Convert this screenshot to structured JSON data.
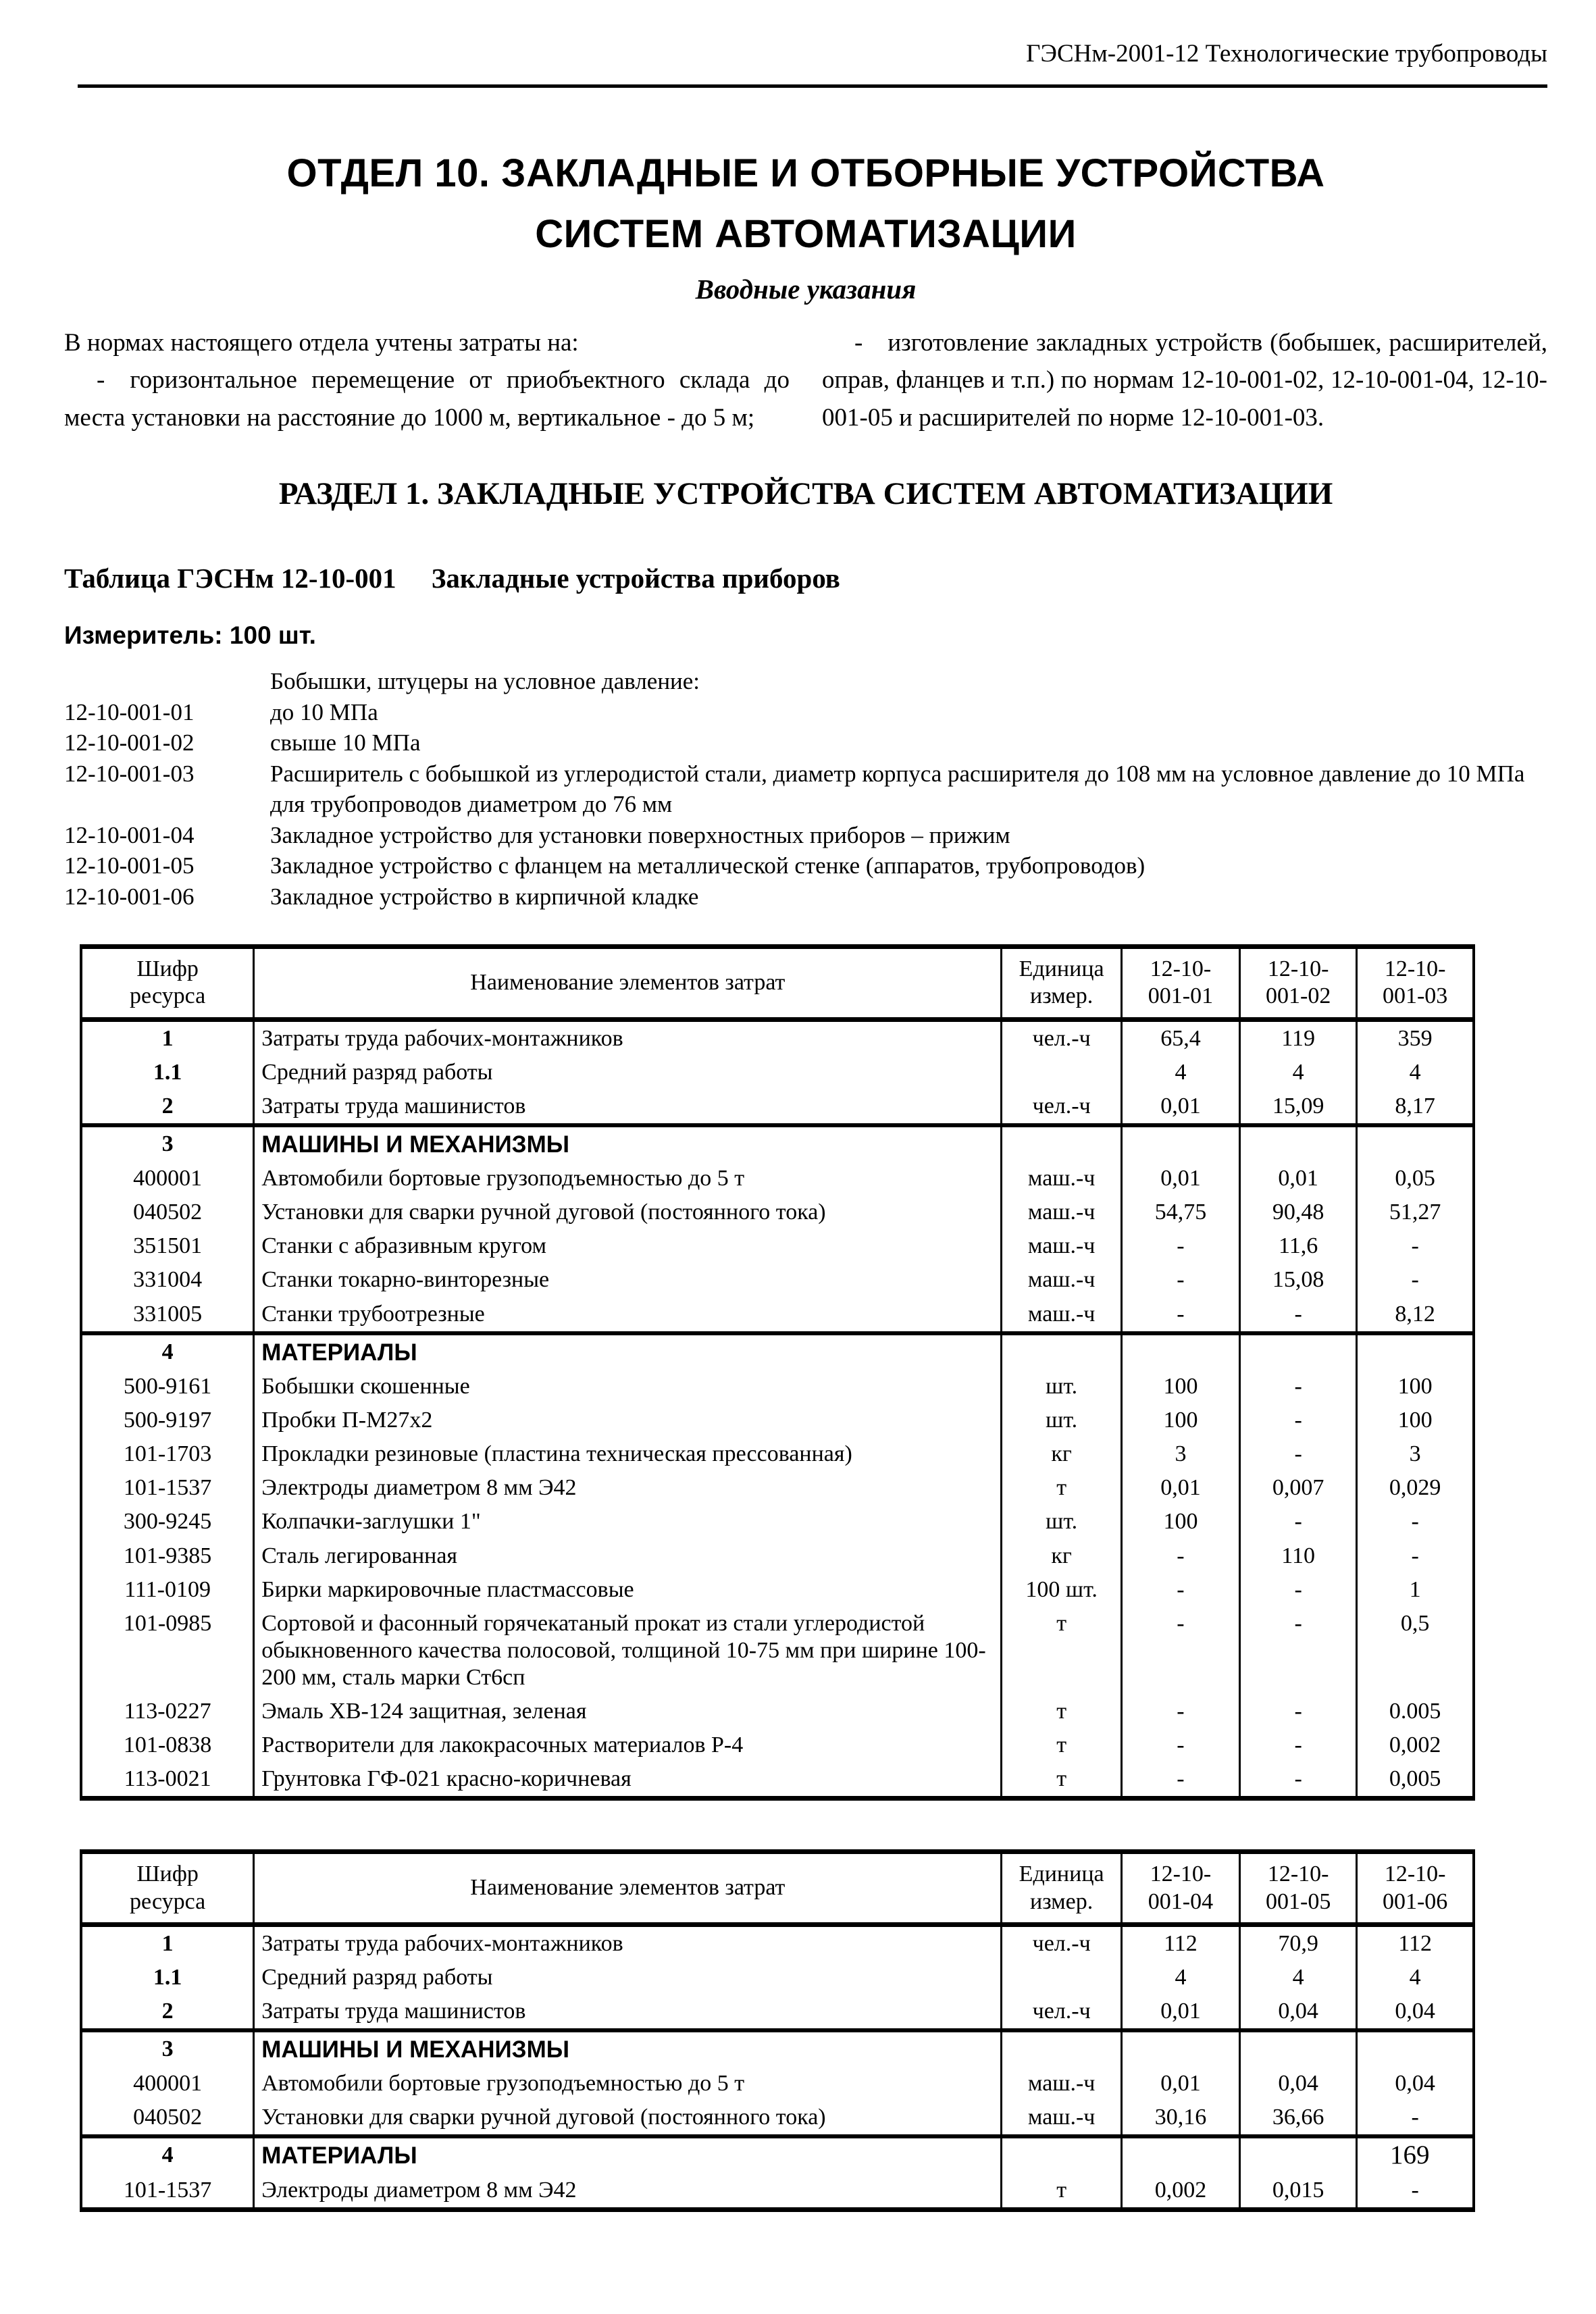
{
  "running_header": "ГЭСНм-2001-12 Технологические трубопроводы",
  "page_number": "169",
  "title": {
    "line1": "ОТДЕЛ 10. ЗАКЛАДНЫЕ И ОТБОРНЫЕ УСТРОЙСТВА",
    "line2": "СИСТЕМ АВТОМАТИЗАЦИИ",
    "subtitle": "Вводные указания"
  },
  "intro": {
    "left_p1": "В нормах настоящего отдела учтены затраты на:",
    "left_p2": "- горизонтальное перемещение от приобъектного склада до места установки на расстояние до 1000 м, вертикальное - до 5 м;",
    "right_p1": "- изготовление закладных устройств (бобышек, расширителей, оправ, фланцев и т.п.) по нормам 12-10-001-02, 12-10-001-04, 12-10-001-05 и расширителей по норме 12-10-001-03."
  },
  "section_title": "РАЗДЕЛ 1. ЗАКЛАДНЫЕ УСТРОЙСТВА СИСТЕМ АВТОМАТИЗАЦИИ",
  "table_caption": {
    "code": "Таблица ГЭСНм 12-10-001",
    "name": "Закладные устройства приборов"
  },
  "meter": "Измеритель: 100 шт.",
  "norm_items": [
    {
      "code": "",
      "text": "Бобышки, штуцеры на условное давление:"
    },
    {
      "code": "12-10-001-01",
      "text": "до 10 МПа"
    },
    {
      "code": "12-10-001-02",
      "text": "свыше 10 МПа"
    },
    {
      "code": "12-10-001-03",
      "text": "Расширитель с бобышкой из углеродистой стали, диаметр корпуса расширителя до 108 мм на условное давление до 10 МПа для трубопроводов диаметром до 76 мм"
    },
    {
      "code": "12-10-001-04",
      "text": "Закладное устройство для установки поверхностных приборов – прижим"
    },
    {
      "code": "12-10-001-05",
      "text": "Закладное устройство с фланцем на металлической стенке (аппаратов, трубопроводов)"
    },
    {
      "code": "12-10-001-06",
      "text": "Закладное устройство в кирпичной кладке"
    }
  ],
  "tables": [
    {
      "columns": [
        "Шифр\nресурса",
        "Наименование элементов затрат",
        "Единица\nизмер.",
        "12-10-\n001-01",
        "12-10-\n001-02",
        "12-10-\n001-03"
      ],
      "rows": [
        {
          "code": "1",
          "name": "Затраты труда рабочих-монтажников",
          "unit": "чел.-ч",
          "values": [
            "65,4",
            "119",
            "359"
          ],
          "bold_code": true
        },
        {
          "code": "1.1",
          "name": "Средний разряд работы",
          "unit": "",
          "values": [
            "4",
            "4",
            "4"
          ],
          "bold_code": true
        },
        {
          "code": "2",
          "name": "Затраты труда машинистов",
          "unit": "чел.-ч",
          "values": [
            "0,01",
            "15,09",
            "8,17"
          ],
          "bold_code": true
        },
        {
          "code": "3",
          "name": "МАШИНЫ И МЕХАНИЗМЫ",
          "unit": "",
          "values": [
            "",
            "",
            ""
          ],
          "section": true
        },
        {
          "code": "400001",
          "name": "Автомобили бортовые грузоподъемностью до 5 т",
          "unit": "маш.-ч",
          "values": [
            "0,01",
            "0,01",
            "0,05"
          ]
        },
        {
          "code": "040502",
          "name": "Установки для сварки ручной дуговой (постоянного тока)",
          "unit": "маш.-ч",
          "values": [
            "54,75",
            "90,48",
            "51,27"
          ]
        },
        {
          "code": "351501",
          "name": "Станки с абразивным кругом",
          "unit": "маш.-ч",
          "values": [
            "-",
            "11,6",
            "-"
          ]
        },
        {
          "code": "331004",
          "name": "Станки токарно-винторезные",
          "unit": "маш.-ч",
          "values": [
            "-",
            "15,08",
            "-"
          ]
        },
        {
          "code": "331005",
          "name": "Станки трубоотрезные",
          "unit": "маш.-ч",
          "values": [
            "-",
            "-",
            "8,12"
          ]
        },
        {
          "code": "4",
          "name": "МАТЕРИАЛЫ",
          "unit": "",
          "values": [
            "",
            "",
            ""
          ],
          "section": true
        },
        {
          "code": "500-9161",
          "name": "Бобышки скошенные",
          "unit": "шт.",
          "values": [
            "100",
            "-",
            "100"
          ]
        },
        {
          "code": "500-9197",
          "name": "Пробки П-М27х2",
          "unit": "шт.",
          "values": [
            "100",
            "-",
            "100"
          ]
        },
        {
          "code": "101-1703",
          "name": "Прокладки резиновые (пластина техническая прессованная)",
          "unit": "кг",
          "values": [
            "3",
            "-",
            "3"
          ]
        },
        {
          "code": "101-1537",
          "name": "Электроды диаметром 8 мм Э42",
          "unit": "т",
          "values": [
            "0,01",
            "0,007",
            "0,029"
          ]
        },
        {
          "code": "300-9245",
          "name": "Колпачки-заглушки 1\"",
          "unit": "шт.",
          "values": [
            "100",
            "-",
            "-"
          ]
        },
        {
          "code": "101-9385",
          "name": "Сталь легированная",
          "unit": "кг",
          "values": [
            "-",
            "110",
            "-"
          ]
        },
        {
          "code": "111-0109",
          "name": "Бирки маркировочные пластмассовые",
          "unit": "100 шт.",
          "values": [
            "-",
            "-",
            "1"
          ]
        },
        {
          "code": "101-0985",
          "name": "Сортовой и фасонный горячекатаный прокат из стали углеродистой обыкновенного качества полосовой, толщиной 10-75 мм при ширине 100-200 мм, сталь марки Ст6сп",
          "unit": "т",
          "values": [
            "-",
            "-",
            "0,5"
          ]
        },
        {
          "code": "113-0227",
          "name": "Эмаль ХВ-124 защитная, зеленая",
          "unit": "т",
          "values": [
            "-",
            "-",
            "0.005"
          ]
        },
        {
          "code": "101-0838",
          "name": "Растворители для лакокрасочных материалов Р-4",
          "unit": "т",
          "values": [
            "-",
            "-",
            "0,002"
          ]
        },
        {
          "code": "113-0021",
          "name": "Грунтовка ГФ-021 красно-коричневая",
          "unit": "т",
          "values": [
            "-",
            "-",
            "0,005"
          ]
        }
      ]
    },
    {
      "columns": [
        "Шифр\nресурса",
        "Наименование элементов затрат",
        "Единица\nизмер.",
        "12-10-\n001-04",
        "12-10-\n001-05",
        "12-10-\n001-06"
      ],
      "rows": [
        {
          "code": "1",
          "name": "Затраты труда рабочих-монтажников",
          "unit": "чел.-ч",
          "values": [
            "112",
            "70,9",
            "112"
          ],
          "bold_code": true
        },
        {
          "code": "1.1",
          "name": "Средний разряд работы",
          "unit": "",
          "values": [
            "4",
            "4",
            "4"
          ],
          "bold_code": true
        },
        {
          "code": "2",
          "name": "Затраты труда машинистов",
          "unit": "чел.-ч",
          "values": [
            "0,01",
            "0,04",
            "0,04"
          ],
          "bold_code": true
        },
        {
          "code": "3",
          "name": "МАШИНЫ И МЕХАНИЗМЫ",
          "unit": "",
          "values": [
            "",
            "",
            ""
          ],
          "section": true
        },
        {
          "code": "400001",
          "name": "Автомобили бортовые грузоподъемностью до 5 т",
          "unit": "маш.-ч",
          "values": [
            "0,01",
            "0,04",
            "0,04"
          ]
        },
        {
          "code": "040502",
          "name": "Установки для сварки ручной дуговой (постоянного тока)",
          "unit": "маш.-ч",
          "values": [
            "30,16",
            "36,66",
            "-"
          ]
        },
        {
          "code": "4",
          "name": "МАТЕРИАЛЫ",
          "unit": "",
          "values": [
            "",
            "",
            ""
          ],
          "section": true
        },
        {
          "code": "101-1537",
          "name": "Электроды диаметром 8 мм Э42",
          "unit": "т",
          "values": [
            "0,002",
            "0,015",
            "-"
          ]
        }
      ]
    }
  ]
}
